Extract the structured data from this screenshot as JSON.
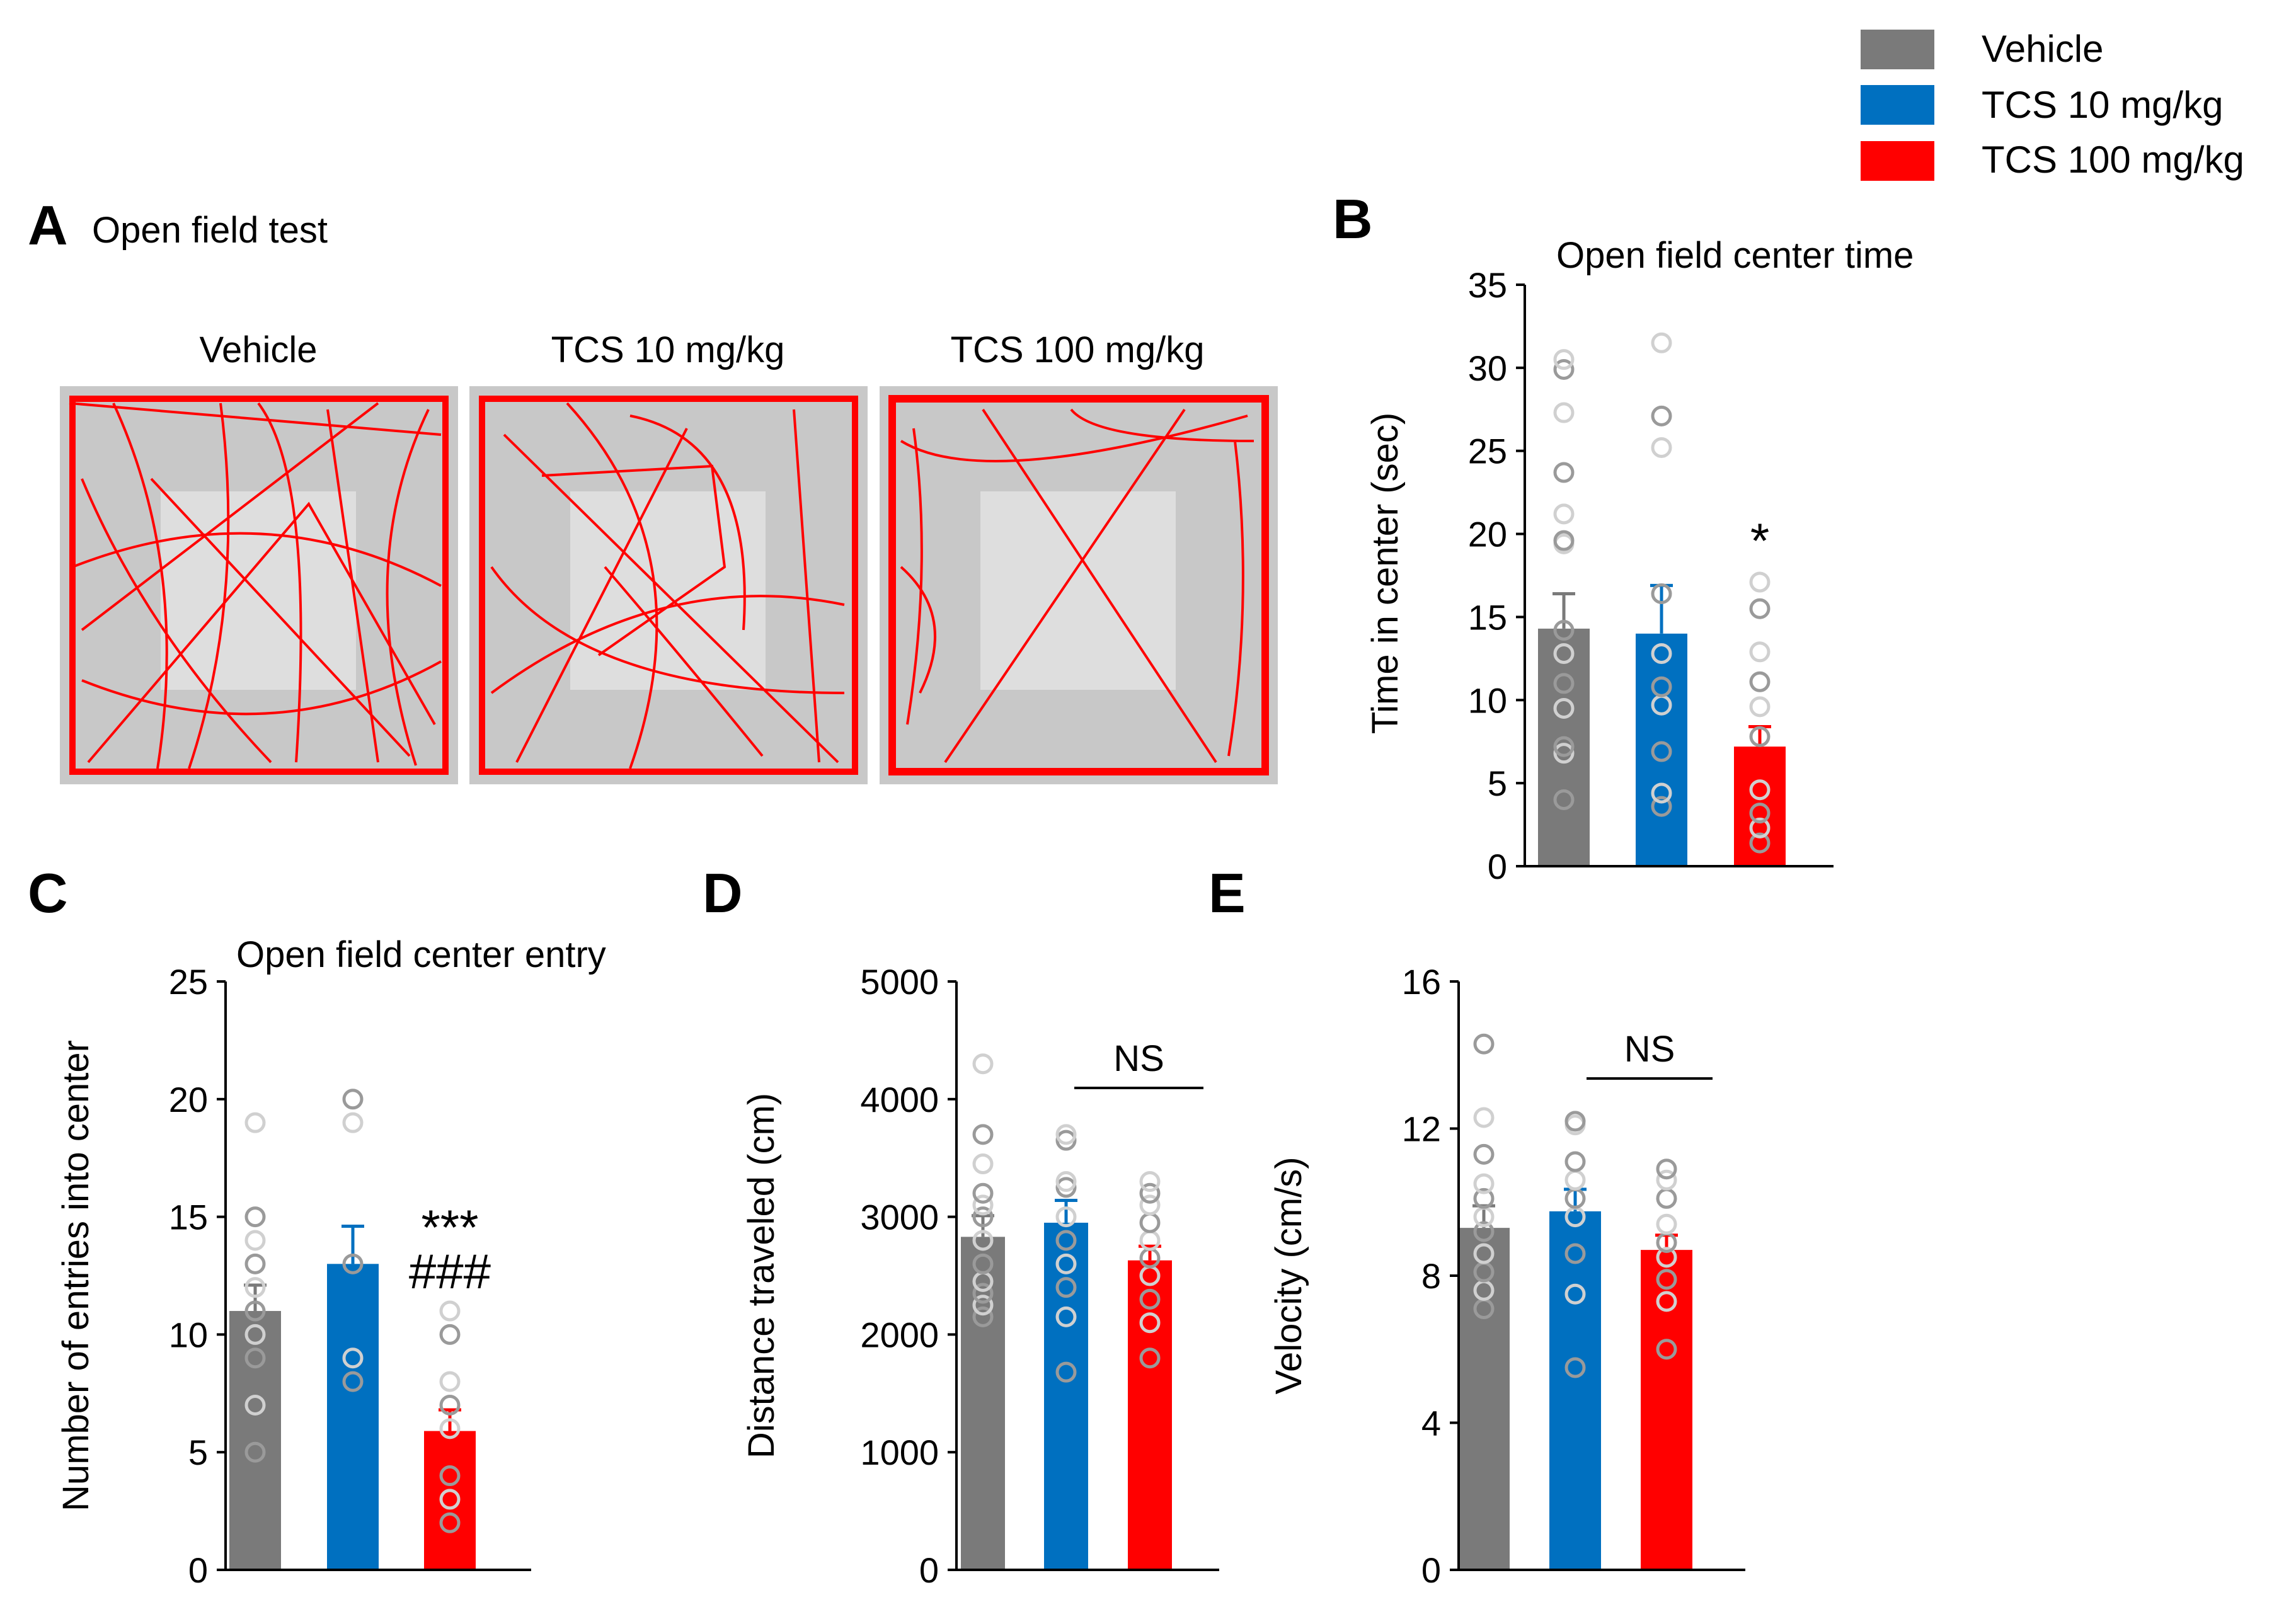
{
  "legend": [
    {
      "label": "Vehicle",
      "color": "#7a7a7a"
    },
    {
      "label": "TCS 10 mg/kg",
      "color": "#0070c0"
    },
    {
      "label": "TCS 100 mg/kg",
      "color": "#ff0000"
    }
  ],
  "panels": {
    "A": {
      "letter": "A",
      "title": "Open field test",
      "labels": [
        "Vehicle",
        "TCS 10 mg/kg",
        "TCS 100 mg/kg"
      ]
    },
    "B": {
      "letter": "B"
    },
    "C": {
      "letter": "C"
    },
    "D": {
      "letter": "D"
    },
    "E": {
      "letter": "E"
    }
  },
  "colors": {
    "vehicle": "#7a7a7a",
    "tcs10": "#0070c0",
    "tcs100": "#ff0000",
    "track": "#ff0000",
    "arena": "#c8c8c8",
    "center_zone": "#dcdcdc"
  },
  "chart_data": [
    {
      "panel": "B",
      "type": "bar",
      "title": "Open field center time",
      "ylabel": "Time in center (sec)",
      "ylim": [
        0,
        35
      ],
      "yticks": [
        0,
        5,
        10,
        15,
        20,
        25,
        30,
        35
      ],
      "categories": [
        "Vehicle",
        "TCS 10 mg/kg",
        "TCS 100 mg/kg"
      ],
      "values": [
        14.3,
        14.0,
        7.2
      ],
      "sem": [
        2.1,
        2.9,
        1.2
      ],
      "points": [
        [
          4,
          6.8,
          7.2,
          9.5,
          11,
          12.8,
          14.2,
          19.4,
          19.6,
          21.2,
          23.7,
          27.3,
          29.9,
          30.5
        ],
        [
          3.6,
          4.4,
          6.9,
          9.7,
          10.8,
          12.8,
          16.4,
          25.2,
          27.1,
          31.5
        ],
        [
          1.4,
          2.3,
          3.2,
          4.6,
          7.8,
          9.6,
          11.1,
          12.9,
          15.5,
          17.1
        ]
      ],
      "annotations": [
        {
          "text": "*",
          "group": 2
        }
      ]
    },
    {
      "panel": "C",
      "type": "bar",
      "title": "Open field center entry",
      "ylabel": "Number  of entries into center",
      "ylim": [
        0,
        25
      ],
      "yticks": [
        0,
        5,
        10,
        15,
        20,
        25
      ],
      "categories": [
        "Vehicle",
        "TCS 10 mg/kg",
        "TCS 100 mg/kg"
      ],
      "values": [
        11.0,
        13.0,
        5.9
      ],
      "sem": [
        1.1,
        1.6,
        0.9
      ],
      "points": [
        [
          5,
          7,
          9,
          10,
          11,
          12,
          13,
          14,
          15,
          19
        ],
        [
          8,
          9,
          13,
          19,
          20
        ],
        [
          2,
          3,
          4,
          6,
          7,
          8,
          10,
          11
        ]
      ],
      "annotations": [
        {
          "text": "***",
          "group": 2
        },
        {
          "text": "###",
          "group": 2
        }
      ]
    },
    {
      "panel": "D",
      "type": "bar",
      "title": "",
      "ylabel": "Distance traveled (cm)",
      "ylim": [
        0,
        5000
      ],
      "yticks": [
        0,
        1000,
        2000,
        3000,
        4000,
        5000
      ],
      "categories": [
        "Vehicle",
        "TCS 10 mg/kg",
        "TCS 100 mg/kg"
      ],
      "values": [
        2830,
        2950,
        2630
      ],
      "sem": [
        180,
        190,
        120
      ],
      "points": [
        [
          2150,
          2250,
          2350,
          2450,
          2600,
          2800,
          3000,
          3100,
          3200,
          3450,
          3700,
          4300
        ],
        [
          1680,
          2150,
          2400,
          2600,
          2800,
          3000,
          3250,
          3300,
          3650,
          3700
        ],
        [
          1800,
          2100,
          2300,
          2500,
          2650,
          2800,
          2950,
          3100,
          3200,
          3300
        ]
      ],
      "annotations": [
        {
          "text": "NS",
          "group": 1
        }
      ]
    },
    {
      "panel": "E",
      "type": "bar",
      "title": "",
      "ylabel": "Velocity (cm/s)",
      "ylim": [
        0,
        16
      ],
      "yticks": [
        0,
        4,
        8,
        12,
        16
      ],
      "categories": [
        "Vehicle",
        "TCS 10 mg/kg",
        "TCS 100 mg/kg"
      ],
      "values": [
        9.3,
        9.75,
        8.7
      ],
      "sem": [
        0.6,
        0.6,
        0.4
      ],
      "points": [
        [
          7.1,
          7.6,
          8.1,
          8.6,
          9.2,
          9.6,
          10.1,
          10.5,
          11.3,
          12.3,
          14.3
        ],
        [
          5.5,
          7.5,
          8.6,
          9.6,
          10.1,
          10.6,
          11.1,
          12.1,
          12.2
        ],
        [
          6.0,
          7.3,
          7.9,
          8.5,
          8.9,
          9.4,
          10.1,
          10.6,
          10.9
        ]
      ],
      "annotations": [
        {
          "text": "NS",
          "group": 1
        }
      ]
    }
  ]
}
